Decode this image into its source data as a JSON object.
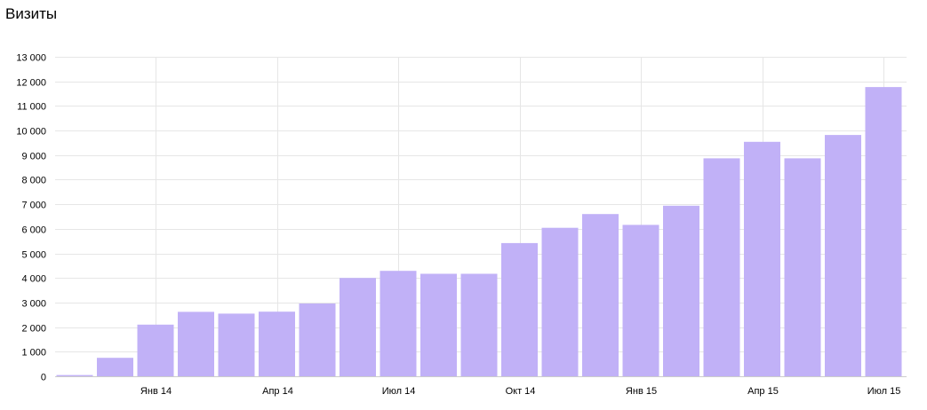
{
  "chart_data": {
    "type": "bar",
    "title": "Визиты",
    "xlabel": "",
    "ylabel": "",
    "ylim": [
      0,
      13000
    ],
    "yticks": [
      0,
      1000,
      2000,
      3000,
      4000,
      5000,
      6000,
      7000,
      8000,
      9000,
      10000,
      11000,
      12000,
      13000
    ],
    "ytick_labels": [
      "0",
      "1 000",
      "2 000",
      "3 000",
      "4 000",
      "5 000",
      "6 000",
      "7 000",
      "8 000",
      "9 000",
      "10 000",
      "11 000",
      "12 000",
      "13 000"
    ],
    "categories": [
      "2013-11",
      "2013-12",
      "2014-01",
      "2014-02",
      "2014-03",
      "2014-04",
      "2014-05",
      "2014-06",
      "2014-07",
      "2014-08",
      "2014-09",
      "2014-10",
      "2014-11",
      "2014-12",
      "2015-01",
      "2015-02",
      "2015-03",
      "2015-04",
      "2015-05",
      "2015-06",
      "2015-07"
    ],
    "values": [
      50,
      750,
      2100,
      2620,
      2550,
      2630,
      2960,
      4000,
      4290,
      4170,
      4170,
      5420,
      6040,
      6600,
      6160,
      6940,
      8870,
      9540,
      8870,
      9820,
      11770
    ],
    "xtick_labels": [
      {
        "category": "2014-01",
        "label": "Янв 14"
      },
      {
        "category": "2014-04",
        "label": "Апр 14"
      },
      {
        "category": "2014-07",
        "label": "Июл 14"
      },
      {
        "category": "2014-10",
        "label": "Окт 14"
      },
      {
        "category": "2015-01",
        "label": "Янв 15"
      },
      {
        "category": "2015-04",
        "label": "Апр 15"
      },
      {
        "category": "2015-07",
        "label": "Июл 15"
      }
    ],
    "bar_color": "#c1b1f7",
    "grid": true,
    "grid_color": "#e6e6e6"
  }
}
